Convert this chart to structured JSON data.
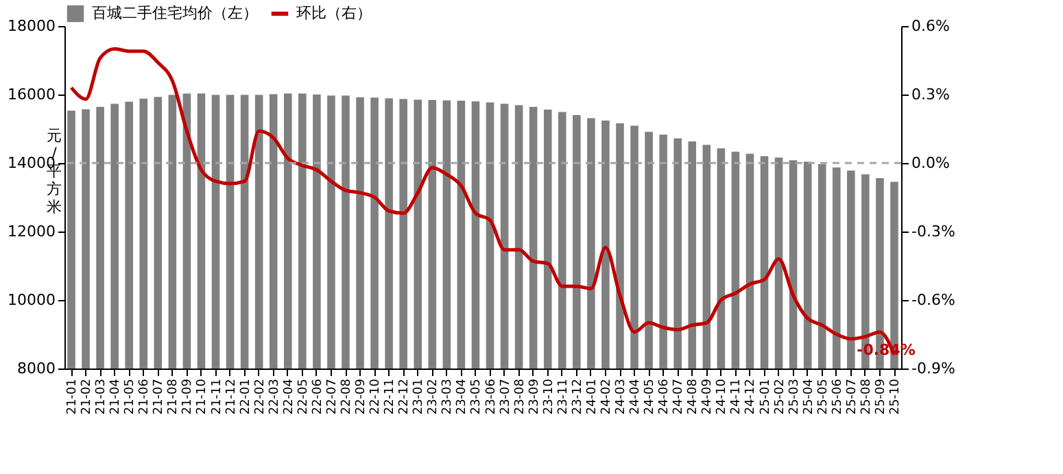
{
  "chart_data": {
    "type": "bar",
    "categories": [
      "21-01",
      "21-02",
      "21-03",
      "21-04",
      "21-05",
      "21-06",
      "21-07",
      "21-08",
      "21-09",
      "21-10",
      "21-11",
      "21-12",
      "22-01",
      "22-02",
      "22-03",
      "22-04",
      "22-05",
      "22-06",
      "22-07",
      "22-08",
      "22-09",
      "22-10",
      "22-11",
      "22-12",
      "23-01",
      "23-02",
      "23-03",
      "23-04",
      "23-05",
      "23-06",
      "23-07",
      "23-08",
      "23-09",
      "23-10",
      "23-11",
      "23-12",
      "24-01",
      "24-02",
      "24-03",
      "24-04",
      "24-05",
      "24-06",
      "24-07",
      "24-08",
      "24-09",
      "24-10",
      "24-11",
      "24-12",
      "25-01",
      "25-02",
      "25-03",
      "25-04",
      "25-05",
      "25-06",
      "25-07",
      "25-08",
      "25-09",
      "25-10"
    ],
    "ylabel": "元/平方米",
    "series": [
      {
        "name": "百城二手住宅均价（左）",
        "color": "#808080",
        "values": [
          15530,
          15570,
          15640,
          15730,
          15790,
          15880,
          15930,
          15990,
          16030,
          16030,
          15990,
          15990,
          15990,
          15990,
          16010,
          16030,
          16030,
          16000,
          15970,
          15970,
          15920,
          15910,
          15890,
          15870,
          15850,
          15840,
          15830,
          15820,
          15800,
          15770,
          15730,
          15690,
          15640,
          15560,
          15490,
          15400,
          15310,
          15240,
          15160,
          15090,
          14910,
          14830,
          14720,
          14630,
          14530,
          14430,
          14330,
          14270,
          14200,
          14160,
          14080,
          14040,
          13970,
          13870,
          13780,
          13670,
          13560,
          13450
        ]
      },
      {
        "name": "环比（右）",
        "type": "line",
        "axis": "y2",
        "color": "#c00000",
        "values": [
          0.33,
          0.28,
          0.46,
          0.5,
          0.49,
          0.49,
          0.44,
          0.36,
          0.14,
          -0.03,
          -0.08,
          -0.09,
          -0.08,
          0.14,
          0.11,
          0.02,
          -0.01,
          -0.03,
          -0.08,
          -0.12,
          -0.13,
          -0.15,
          -0.21,
          -0.22,
          -0.13,
          -0.02,
          -0.05,
          -0.1,
          -0.22,
          -0.25,
          -0.38,
          -0.38,
          -0.43,
          -0.44,
          -0.54,
          -0.54,
          -0.55,
          -0.37,
          -0.58,
          -0.74,
          -0.7,
          -0.72,
          -0.73,
          -0.71,
          -0.7,
          -0.6,
          -0.57,
          -0.53,
          -0.51,
          -0.42,
          -0.58,
          -0.68,
          -0.71,
          -0.75,
          -0.77,
          -0.76,
          -0.74,
          -0.84
        ],
        "value_labels": [
          null,
          null,
          null,
          null,
          null,
          null,
          null,
          null,
          null,
          null,
          null,
          null,
          null,
          null,
          null,
          null,
          null,
          null,
          null,
          null,
          null,
          null,
          null,
          null,
          null,
          null,
          null,
          null,
          null,
          null,
          null,
          null,
          null,
          null,
          null,
          null,
          null,
          null,
          null,
          null,
          null,
          null,
          null,
          null,
          null,
          null,
          null,
          null,
          null,
          null,
          null,
          null,
          null,
          null,
          null,
          null,
          null,
          "-0.84%"
        ]
      }
    ],
    "ylim": [
      8000,
      18000
    ],
    "yticks": [
      8000,
      10000,
      12000,
      14000,
      16000,
      18000
    ],
    "y2lim": [
      -0.9,
      0.6
    ],
    "y2ticks": [
      {
        "value": -0.9,
        "label": "-0.9%"
      },
      {
        "value": -0.6,
        "label": "-0.6%"
      },
      {
        "value": -0.3,
        "label": "-0.3%"
      },
      {
        "value": 0.0,
        "label": "0.0%"
      },
      {
        "value": 0.3,
        "label": "0.3%"
      },
      {
        "value": 0.6,
        "label": "0.6%"
      }
    ],
    "ref_lines": [
      {
        "axis": "y2",
        "value": 0.0,
        "color": "#a6a6a6",
        "line_style": "dashed"
      }
    ],
    "legend": "top",
    "grid": false,
    "marker": "none",
    "line_style": "solid"
  }
}
